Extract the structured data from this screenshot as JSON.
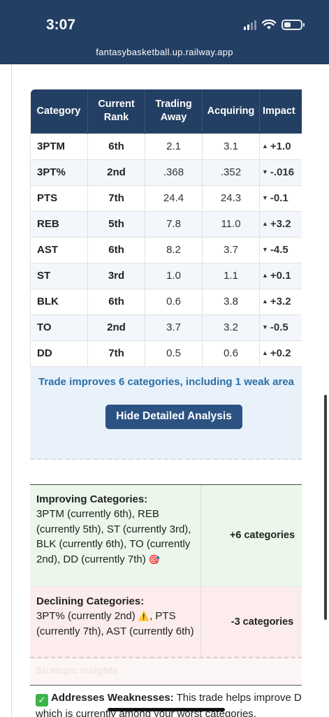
{
  "status": {
    "time": "3:07"
  },
  "browser": {
    "url": "fantasybasketball.up.railway.app"
  },
  "table": {
    "headers": [
      "Category",
      "Current Rank",
      "Trading Away",
      "Acquiring",
      "Impact"
    ],
    "rows": [
      {
        "category": "3PTM",
        "rank": "6th",
        "away": "2.1",
        "acquiring": "3.1",
        "impact": "+1.0",
        "arrow": "▲",
        "dir": "up"
      },
      {
        "category": "3PT%",
        "rank": "2nd",
        "away": ".368",
        "acquiring": ".352",
        "impact": "-.016",
        "arrow": "▼",
        "dir": "down"
      },
      {
        "category": "PTS",
        "rank": "7th",
        "away": "24.4",
        "acquiring": "24.3",
        "impact": "-0.1",
        "arrow": "▼",
        "dir": "down"
      },
      {
        "category": "REB",
        "rank": "5th",
        "away": "7.8",
        "acquiring": "11.0",
        "impact": "+3.2",
        "arrow": "▲",
        "dir": "up"
      },
      {
        "category": "AST",
        "rank": "6th",
        "away": "8.2",
        "acquiring": "3.7",
        "impact": "-4.5",
        "arrow": "▼",
        "dir": "down"
      },
      {
        "category": "ST",
        "rank": "3rd",
        "away": "1.0",
        "acquiring": "1.1",
        "impact": "+0.1",
        "arrow": "▲",
        "dir": "up"
      },
      {
        "category": "BLK",
        "rank": "6th",
        "away": "0.6",
        "acquiring": "3.8",
        "impact": "+3.2",
        "arrow": "▲",
        "dir": "up"
      },
      {
        "category": "TO",
        "rank": "2nd",
        "away": "3.7",
        "acquiring": "3.2",
        "impact": "-0.5",
        "arrow": "▼",
        "dir": "up"
      },
      {
        "category": "DD",
        "rank": "7th",
        "away": "0.5",
        "acquiring": "0.6",
        "impact": "+0.2",
        "arrow": "▲",
        "dir": "up"
      }
    ]
  },
  "summary": {
    "text": "Trade improves 6 categories, including 1 weak area",
    "button_label": "Hide Detailed Analysis"
  },
  "categories": {
    "improving_title": "Improving Categories:",
    "improving_body": "3PTM (currently 6th), REB (currently 5th), ST (currently 3rd), BLK (currently 6th), TO (currently 2nd), DD (currently 7th)",
    "improving_emoji": "🎯",
    "improving_count": "+6 categories",
    "declining_title": "Declining Categories:",
    "declining_body_1": "3PT% (currently 2nd)",
    "declining_warning": "⚠️",
    "declining_body_2": ", PTS (currently 7th), AST (currently 6th)",
    "declining_count": "-3 categories"
  },
  "strategic": {
    "heading": "Strategic Insights"
  },
  "weakness": {
    "check": "✓",
    "title": "Addresses Weaknesses:",
    "body": "This trade helps improve DD, which is currently among your worst categories."
  },
  "colors": {
    "navy": "#233f63",
    "positive": "#2a9a3c",
    "negative": "#d12b2b",
    "link_blue": "#2a6fa8"
  }
}
